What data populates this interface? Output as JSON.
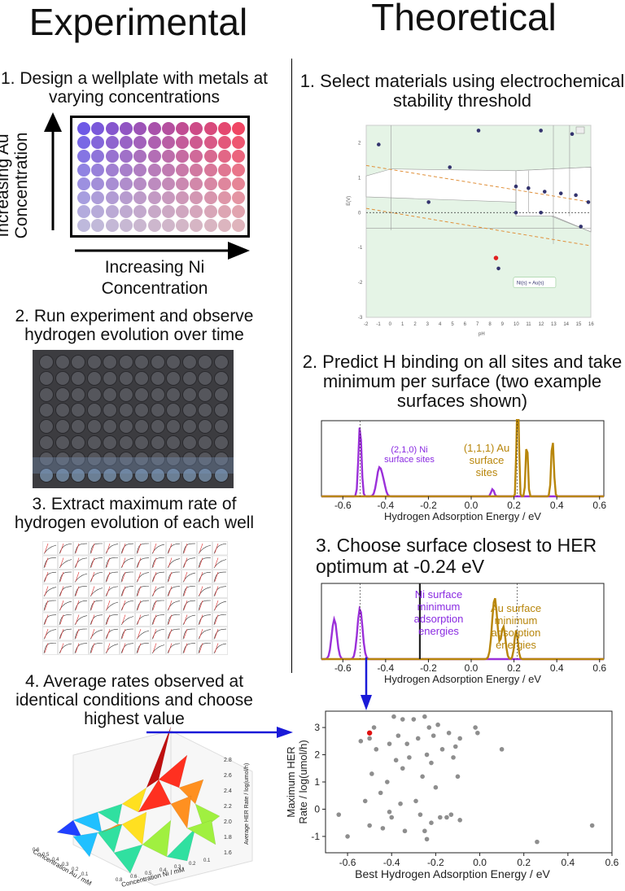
{
  "experimental": {
    "heading": "Experimental",
    "step1": "1. Design a wellplate with metals at varying concentrations",
    "y_axis_label": "Increasing Au Concentration",
    "x_axis_label": "Increasing Ni Concentration",
    "step2": "2. Run experiment and observe hydrogen evolution over time",
    "step3": "3. Extract maximum rate of hydrogen evolution of each well",
    "step4": "4. Average rates observed at identical conditions and choose highest value",
    "surface_plot": {
      "xlabel": "Concentration Ni / mM",
      "ylabel": "Concentration Au / mM",
      "zlabel": "Average HER Rate / log(umol/h)",
      "z_ticks": [
        "2.8",
        "2.6",
        "2.4",
        "2.2",
        "2.0",
        "1.8",
        "1.6"
      ],
      "x_ticks": [
        "0.8",
        "0.6",
        "0.5",
        "0.4",
        "0.3",
        "0.2",
        "0.1"
      ],
      "y_ticks": [
        "0.6",
        "0.5",
        "0.4",
        "0.3",
        "0.2",
        "0.1"
      ]
    }
  },
  "theoretical": {
    "heading": "Theoretical",
    "step1": "1. Select materials using electrochemical stability threshold",
    "pourbaix": {
      "ylabel": "E(V)",
      "xlabel": "pH",
      "x_ticks": [
        "-2",
        "-1",
        "0",
        "1",
        "2",
        "3",
        "4",
        "5",
        "6",
        "7",
        "8",
        "9",
        "10",
        "11",
        "12",
        "13",
        "14",
        "15",
        "16"
      ],
      "y_ticks": [
        "2",
        "1",
        "0",
        "-1",
        "-2",
        "-3"
      ],
      "tooltip": "Ni(s) + Au(s)"
    },
    "step2": "2. Predict H binding on all sites and take minimum per surface (two example surfaces shown)",
    "plot2": {
      "ni_label": "(2,1,0) Ni surface sites",
      "au_label": "(1,1,1) Au surface sites",
      "xlabel": "Hydrogen Adsorption Energy / eV",
      "x_ticks": [
        "-0.6",
        "-0.4",
        "-0.2",
        "0.0",
        "0.2",
        "0.4",
        "0.6"
      ]
    },
    "step3": "3. Choose surface closest to HER optimum at -0.24 eV",
    "plot3": {
      "ni_label": "Ni surface minimum adsorption energies",
      "au_label": "Au surface minimum adsorption energies",
      "xlabel": "Hydrogen Adsorption Energy / eV",
      "x_ticks": [
        "-0.6",
        "-0.4",
        "-0.2",
        "0.0",
        "0.2",
        "0.4",
        "0.6"
      ]
    }
  },
  "chart_data": {
    "type": "scatter",
    "xlabel": "Best Hydrogen Adsorption Energy / eV",
    "ylabel": "Maximum HER Rate / log(umol/h)",
    "xlim": [
      -0.7,
      0.6
    ],
    "ylim": [
      -1.6,
      3.6
    ],
    "x_ticks": [
      "-0.6",
      "-0.4",
      "-0.2",
      "0.0",
      "0.2",
      "0.4",
      "0.6"
    ],
    "y_ticks": [
      "3",
      "2",
      "1",
      "0",
      "-1"
    ],
    "points": [
      [
        -0.64,
        -0.2
      ],
      [
        -0.6,
        -1.0
      ],
      [
        -0.54,
        2.5
      ],
      [
        -0.52,
        0.3
      ],
      [
        -0.5,
        2.6
      ],
      [
        -0.5,
        -0.6
      ],
      [
        -0.49,
        1.3
      ],
      [
        -0.48,
        3.0
      ],
      [
        -0.47,
        2.2
      ],
      [
        -0.45,
        0.6
      ],
      [
        -0.44,
        -0.7
      ],
      [
        -0.42,
        1.0
      ],
      [
        -0.41,
        -0.1
      ],
      [
        -0.41,
        2.4
      ],
      [
        -0.4,
        -0.3
      ],
      [
        -0.39,
        3.4
      ],
      [
        -0.38,
        1.8
      ],
      [
        -0.37,
        2.7
      ],
      [
        -0.36,
        0.2
      ],
      [
        -0.35,
        3.3
      ],
      [
        -0.35,
        1.5
      ],
      [
        -0.34,
        -0.8
      ],
      [
        -0.33,
        2.4
      ],
      [
        -0.32,
        1.9
      ],
      [
        -0.3,
        3.3
      ],
      [
        -0.29,
        0.3
      ],
      [
        -0.28,
        2.6
      ],
      [
        -0.27,
        -0.2
      ],
      [
        -0.26,
        1.2
      ],
      [
        -0.25,
        3.4
      ],
      [
        -0.25,
        -0.8
      ],
      [
        -0.24,
        2.0
      ],
      [
        -0.24,
        -1.1
      ],
      [
        -0.23,
        3.0
      ],
      [
        -0.22,
        1.7
      ],
      [
        -0.22,
        -0.5
      ],
      [
        -0.21,
        2.7
      ],
      [
        -0.2,
        0.8
      ],
      [
        -0.19,
        3.1
      ],
      [
        -0.18,
        -0.3
      ],
      [
        -0.17,
        2.2
      ],
      [
        -0.15,
        -0.3
      ],
      [
        -0.14,
        2.8
      ],
      [
        -0.13,
        -0.2
      ],
      [
        -0.12,
        1.9
      ],
      [
        -0.11,
        2.3
      ],
      [
        -0.1,
        1.2
      ],
      [
        -0.09,
        2.6
      ],
      [
        -0.09,
        -0.4
      ],
      [
        -0.02,
        3.0
      ],
      [
        -0.01,
        2.8
      ],
      [
        0.1,
        2.2
      ],
      [
        0.26,
        -1.2
      ],
      [
        0.51,
        -0.6
      ]
    ],
    "highlight": [
      -0.5,
      2.8
    ]
  }
}
